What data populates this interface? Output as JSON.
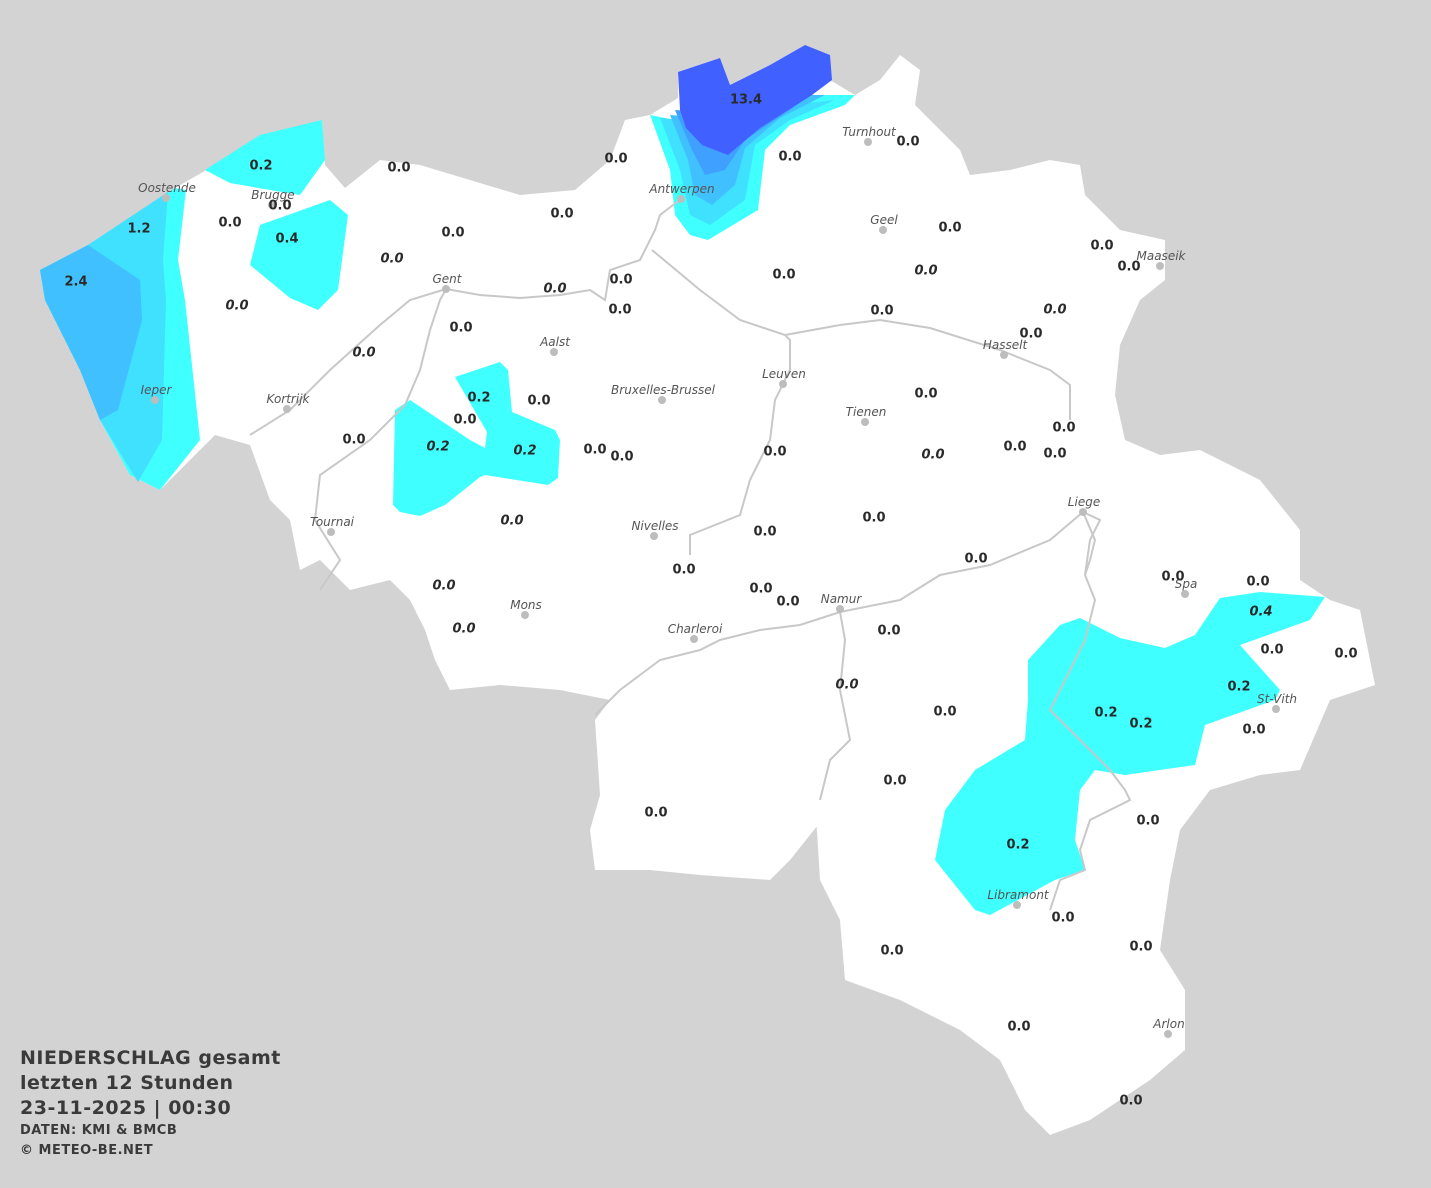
{
  "legend": {
    "title": "NIEDERSCHLAG gesamt",
    "period": "letzten 12 Stunden",
    "datetime": "23-11-2025  |  00:30",
    "source": "DATEN: KMI & BMCB",
    "copyright": "© METEO-BE.NET"
  },
  "colors": {
    "background": "#d3d3d3",
    "land": "#ffffff",
    "river": "#c8c8c8",
    "precip_0_2": "#40ffff",
    "precip_1": "#40e0ff",
    "precip_2": "#40c0ff",
    "precip_5": "#40a0ff",
    "precip_10": "#4060ff"
  },
  "cities": [
    "Oostende",
    "Brugge",
    "Ieper",
    "Kortrijk",
    "Gent",
    "Aalst",
    "Antwerpen",
    "Turnhout",
    "Geel",
    "Maaseik",
    "Hasselt",
    "Leuven",
    "Tienen",
    "Bruxelles-Brussel",
    "Tournai",
    "Nivelles",
    "Liege",
    "Mons",
    "Charleroi",
    "Namur",
    "Spa",
    "St-Vith",
    "Libramont",
    "Arlon"
  ],
  "stations": [
    {
      "v": "0.0"
    },
    {
      "v": "0.0"
    },
    {
      "v": "13.4"
    },
    {
      "v": "0.0"
    },
    {
      "v": "0.0"
    },
    {
      "v": "0.2"
    },
    {
      "v": "0.0"
    },
    {
      "v": "0.0"
    },
    {
      "v": "1.2"
    },
    {
      "v": "0.4"
    },
    {
      "v": "2.4"
    },
    {
      "v": "0.0"
    },
    {
      "v": "0.0"
    },
    {
      "v": "0.0",
      "italic": true
    },
    {
      "v": "0.0"
    },
    {
      "v": "0.0"
    },
    {
      "v": "0.0"
    },
    {
      "v": "0.0"
    },
    {
      "v": "0.0",
      "italic": true
    },
    {
      "v": "0.0"
    },
    {
      "v": "0.0",
      "italic": true
    },
    {
      "v": "0.0"
    },
    {
      "v": "0.0",
      "italic": true
    },
    {
      "v": "0.0"
    },
    {
      "v": "0.0",
      "italic": true
    },
    {
      "v": "0.0"
    },
    {
      "v": "0.0"
    },
    {
      "v": "0.0",
      "italic": true
    },
    {
      "v": "0.2"
    },
    {
      "v": "0.0"
    },
    {
      "v": "0.0"
    },
    {
      "v": "0.0"
    },
    {
      "v": "0.0"
    },
    {
      "v": "0.2",
      "italic": true
    },
    {
      "v": "0.2",
      "italic": true
    },
    {
      "v": "0.0"
    },
    {
      "v": "0.0"
    },
    {
      "v": "0.0"
    },
    {
      "v": "0.0",
      "italic": true
    },
    {
      "v": "0.0"
    },
    {
      "v": "0.0"
    },
    {
      "v": "0.0"
    },
    {
      "v": "0.0",
      "italic": true
    },
    {
      "v": "0.0"
    },
    {
      "v": "0.0"
    },
    {
      "v": "0.0"
    },
    {
      "v": "0.0"
    },
    {
      "v": "0.0",
      "italic": true
    },
    {
      "v": "0.0"
    },
    {
      "v": "0.0"
    },
    {
      "v": "0.0"
    },
    {
      "v": "0.0"
    },
    {
      "v": "0.4",
      "italic": true
    },
    {
      "v": "0.0",
      "italic": true
    },
    {
      "v": "0.0"
    },
    {
      "v": "0.0"
    },
    {
      "v": "0.0"
    },
    {
      "v": "0.0",
      "italic": true
    },
    {
      "v": "0.2"
    },
    {
      "v": "0.0"
    },
    {
      "v": "0.2"
    },
    {
      "v": "0.2"
    },
    {
      "v": "0.0"
    },
    {
      "v": "0.0"
    },
    {
      "v": "0.0"
    },
    {
      "v": "0.0"
    },
    {
      "v": "0.2"
    },
    {
      "v": "0.0"
    },
    {
      "v": "0.0"
    },
    {
      "v": "0.0"
    },
    {
      "v": "0.0"
    },
    {
      "v": "0.0"
    }
  ]
}
